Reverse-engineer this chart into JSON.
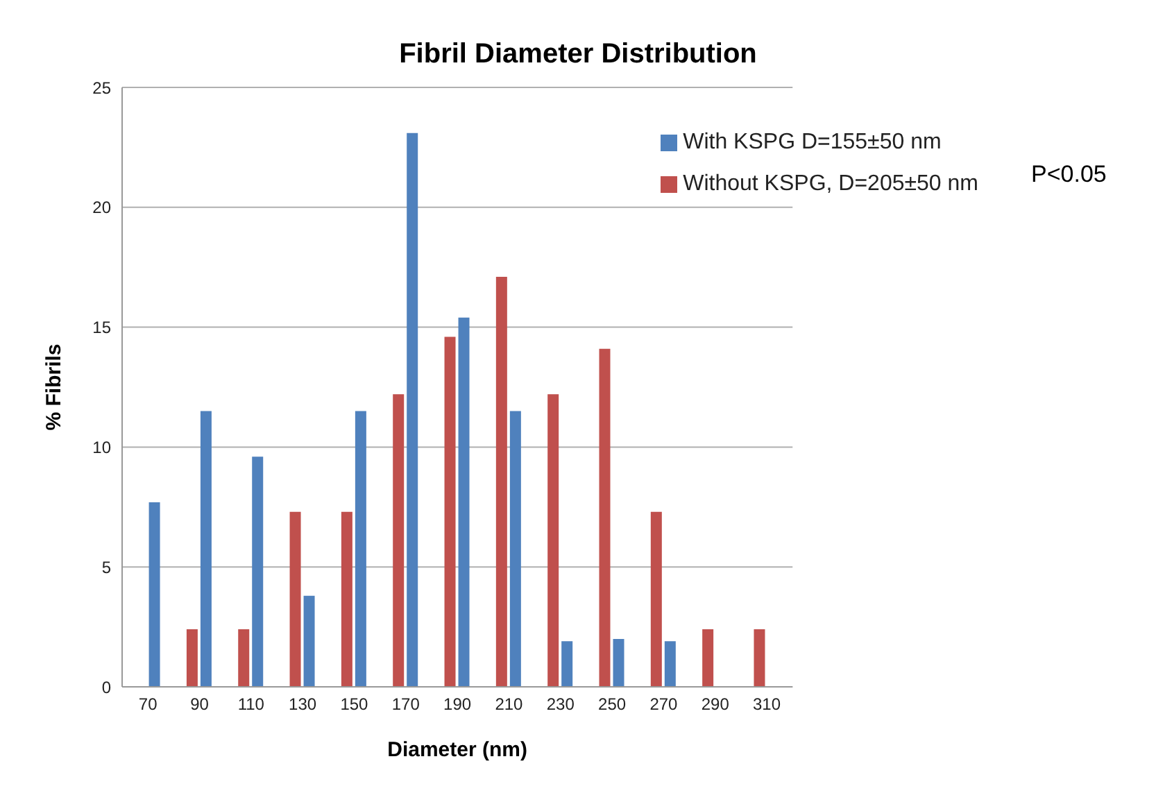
{
  "chart_data": {
    "type": "bar",
    "title": "Fibril Diameter Distribution",
    "xlabel": "Diameter (nm)",
    "ylabel": "% Fibrils",
    "categories": [
      "70",
      "90",
      "110",
      "130",
      "150",
      "170",
      "190",
      "210",
      "230",
      "250",
      "270",
      "290",
      "310"
    ],
    "series": [
      {
        "name": "Without KSPG, D=205±50 nm",
        "color": "#c0504d",
        "values": [
          0,
          2.4,
          2.4,
          7.3,
          7.3,
          12.2,
          14.6,
          17.1,
          12.2,
          14.1,
          7.3,
          2.4,
          2.4
        ]
      },
      {
        "name": "With KSPG D=155±50 nm",
        "color": "#4f81bd",
        "values": [
          7.7,
          11.5,
          9.6,
          3.8,
          11.5,
          23.1,
          15.4,
          11.5,
          1.9,
          2.0,
          1.9,
          0,
          0
        ]
      }
    ],
    "ylim": [
      0,
      25
    ],
    "yticks": [
      0,
      5,
      10,
      15,
      20,
      25
    ],
    "grid": "y",
    "legend": "top right",
    "annotations": [
      "P<0.05"
    ]
  }
}
